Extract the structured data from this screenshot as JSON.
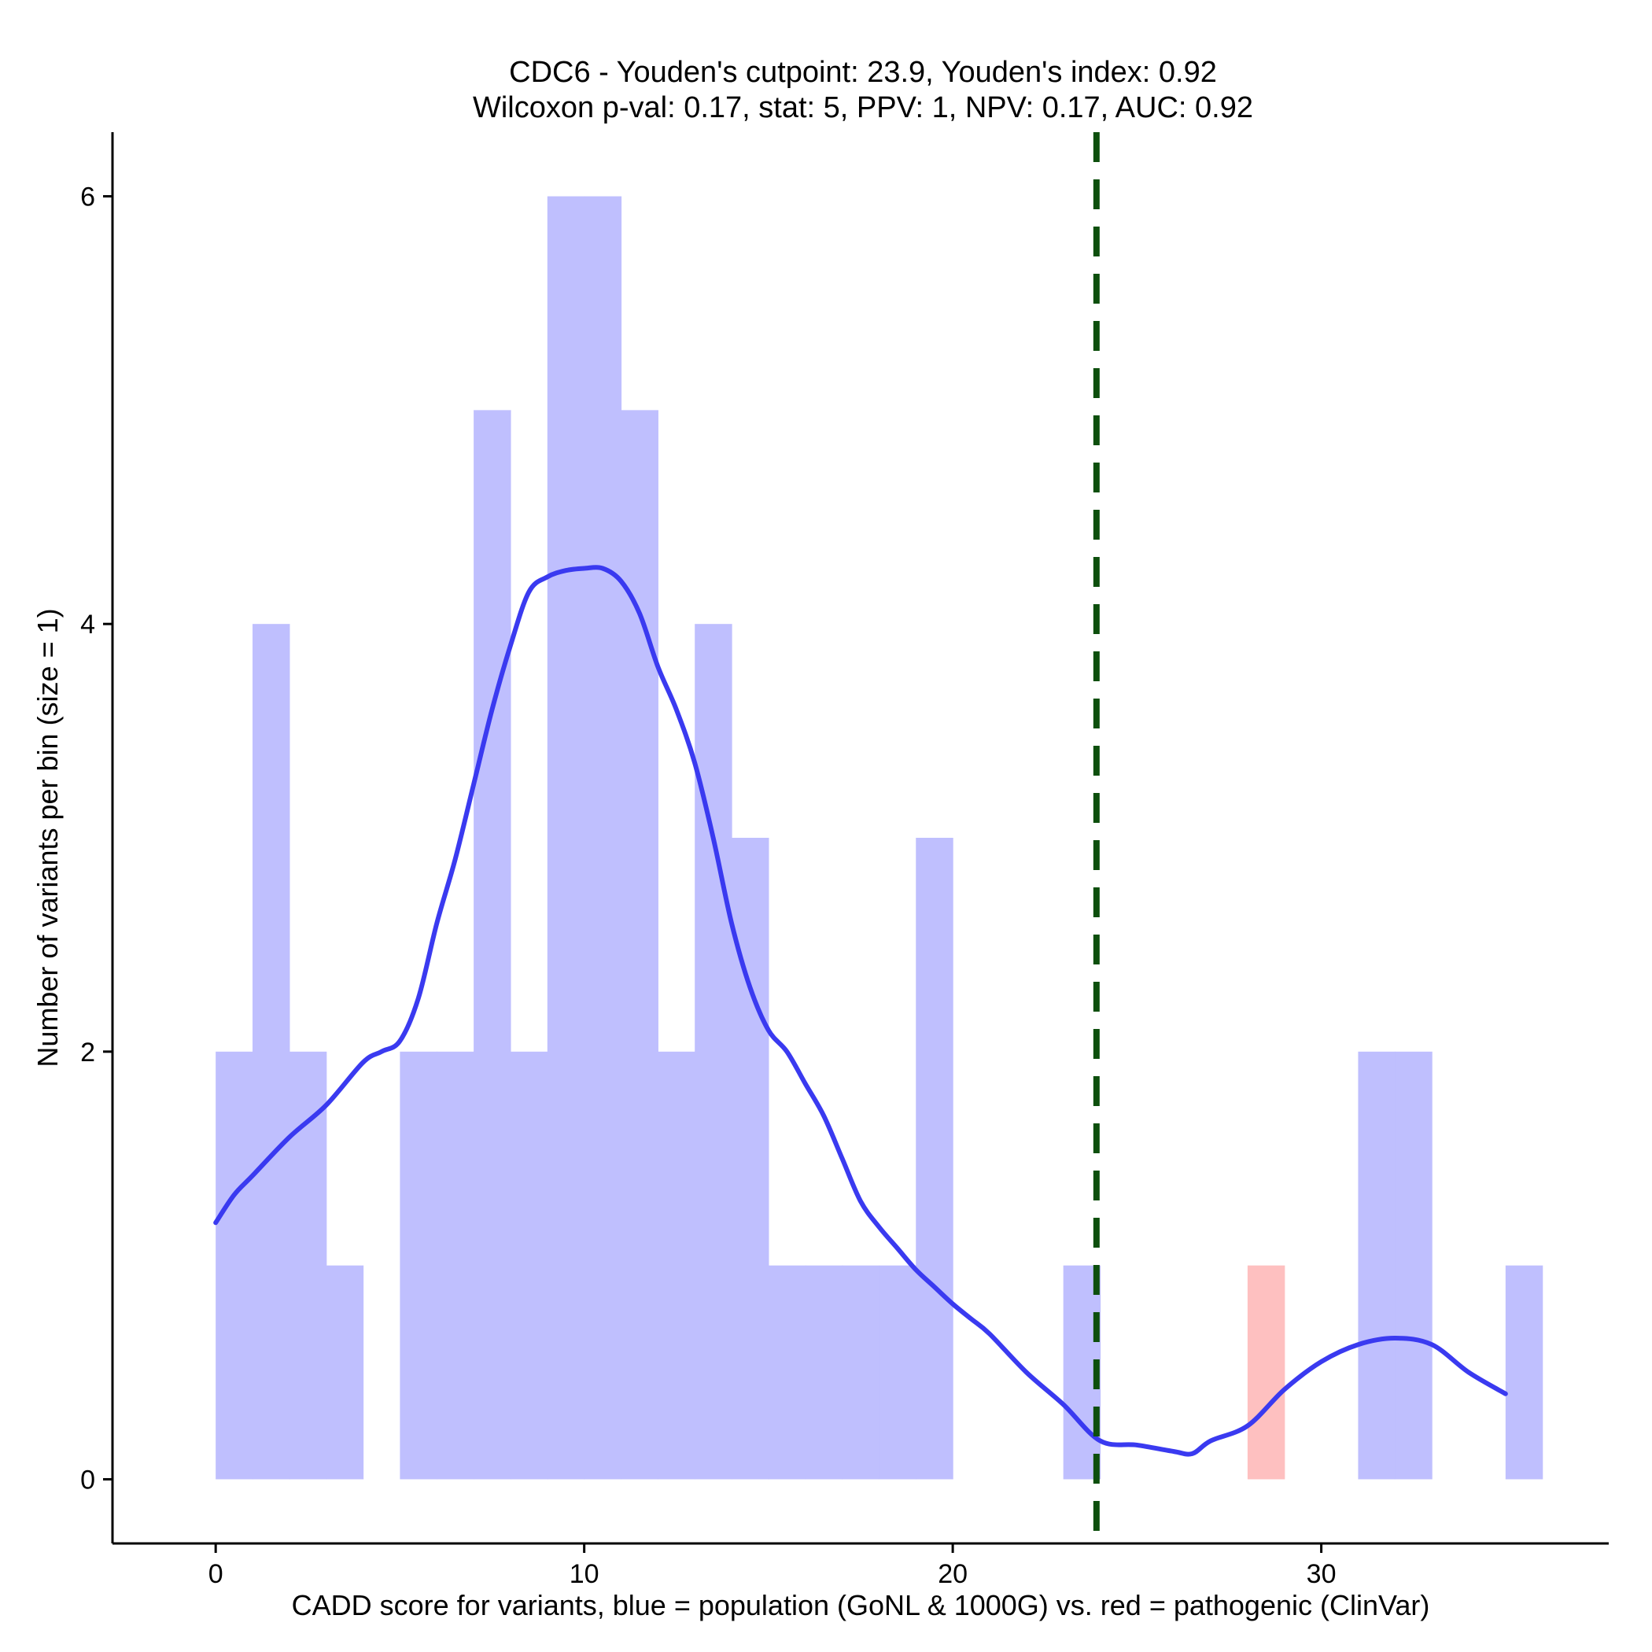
{
  "chart_data": {
    "type": "bar",
    "title": "CDC6 - Youden's cutpoint: 23.9, Youden's index: 0.92",
    "subtitle": "Wilcoxon p-val: 0.17, stat: 5, PPV: 1, NPV: 0.17, AUC: 0.92",
    "xlabel": "CADD score for variants, blue = population (GoNL & 1000G) vs. red = pathogenic (ClinVar)",
    "ylabel": "Number of variants per bin (size = 1)",
    "xlim": [
      -2.8,
      37.8
    ],
    "ylim": [
      -0.3,
      6.3
    ],
    "x_ticks": [
      0,
      10,
      20,
      30
    ],
    "y_ticks": [
      0,
      2,
      4,
      6
    ],
    "bin_width": 1,
    "series": [
      {
        "name": "population (GoNL & 1000G)",
        "color": "#bfbffe",
        "bins": [
          {
            "start": 0,
            "count": 2
          },
          {
            "start": 1,
            "count": 4
          },
          {
            "start": 2,
            "count": 2
          },
          {
            "start": 3,
            "count": 1
          },
          {
            "start": 5,
            "count": 2
          },
          {
            "start": 6,
            "count": 2
          },
          {
            "start": 7,
            "count": 5
          },
          {
            "start": 8,
            "count": 2
          },
          {
            "start": 9,
            "count": 6
          },
          {
            "start": 10,
            "count": 6
          },
          {
            "start": 11,
            "count": 5
          },
          {
            "start": 12,
            "count": 2
          },
          {
            "start": 13,
            "count": 4
          },
          {
            "start": 14,
            "count": 3
          },
          {
            "start": 15,
            "count": 1
          },
          {
            "start": 16,
            "count": 1
          },
          {
            "start": 17,
            "count": 1
          },
          {
            "start": 18,
            "count": 1
          },
          {
            "start": 19,
            "count": 3
          },
          {
            "start": 23,
            "count": 1
          },
          {
            "start": 31,
            "count": 2
          },
          {
            "start": 32,
            "count": 2
          },
          {
            "start": 35,
            "count": 1
          }
        ]
      },
      {
        "name": "pathogenic (ClinVar)",
        "color": "#fec0c0",
        "bins": [
          {
            "start": 28,
            "count": 1
          }
        ]
      }
    ],
    "density_curve": {
      "name": "population density (scaled)",
      "color": "#3a3af0",
      "x": [
        0,
        0.5,
        1,
        2,
        3,
        4,
        4.5,
        5,
        5.5,
        6,
        6.5,
        7,
        7.5,
        8,
        8.5,
        9,
        9.5,
        10,
        10.5,
        11,
        11.5,
        12,
        12.5,
        13,
        13.5,
        14,
        14.5,
        15,
        15.5,
        16,
        16.5,
        17,
        17.5,
        18,
        18.5,
        19,
        19.5,
        20,
        20.5,
        21,
        22,
        23,
        24,
        25,
        26,
        26.5,
        27,
        28,
        29,
        30,
        31,
        32,
        33,
        34,
        35
      ],
      "y": [
        1.2,
        1.33,
        1.42,
        1.6,
        1.75,
        1.95,
        2.0,
        2.05,
        2.25,
        2.6,
        2.9,
        3.25,
        3.6,
        3.9,
        4.15,
        4.22,
        4.25,
        4.26,
        4.26,
        4.2,
        4.05,
        3.8,
        3.6,
        3.35,
        3.0,
        2.6,
        2.3,
        2.1,
        2.0,
        1.85,
        1.7,
        1.5,
        1.3,
        1.18,
        1.08,
        0.98,
        0.9,
        0.82,
        0.75,
        0.68,
        0.5,
        0.35,
        0.18,
        0.16,
        0.13,
        0.12,
        0.18,
        0.25,
        0.42,
        0.55,
        0.63,
        0.66,
        0.63,
        0.5,
        0.4
      ]
    },
    "cutpoint_line": {
      "x": 23.9,
      "color": "#0d4f0d",
      "style": "dashed"
    }
  }
}
